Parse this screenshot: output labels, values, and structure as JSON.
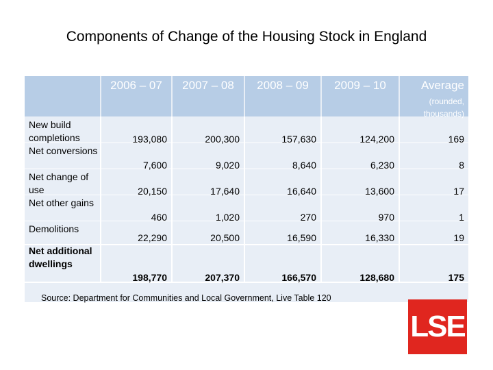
{
  "title": "Components of Change of the Housing Stock in England",
  "table": {
    "columns": [
      "2006 – 07",
      "2007 – 08",
      "2008 – 09",
      "2009 – 10",
      "Average"
    ],
    "average_note": "(rounded, thousands)",
    "row_labels": [
      "New build completions",
      "Net conversions",
      "Net change of use",
      "Net other gains",
      "Demolitions"
    ],
    "total_label": "Net additional dwellings",
    "rows": [
      [
        "193,080",
        "200,300",
        "157,630",
        "124,200",
        "169"
      ],
      [
        "7,600",
        "9,020",
        "8,640",
        "6,230",
        "8"
      ],
      [
        "20,150",
        "17,640",
        "16,640",
        "13,600",
        "17"
      ],
      [
        "460",
        "1,020",
        "270",
        "970",
        "1"
      ],
      [
        "22,290",
        "20,500",
        "16,590",
        "16,330",
        "19"
      ]
    ],
    "total": [
      "198,770",
      "207,370",
      "166,570",
      "128,680",
      "175"
    ]
  },
  "source": "Source: Department for Communities and Local Government, Live Table 120",
  "logo_text": "LSE",
  "colors": {
    "header_bg": "#b7cde6",
    "table_bg": "#e8eef6",
    "logo_bg": "#e0261f"
  }
}
